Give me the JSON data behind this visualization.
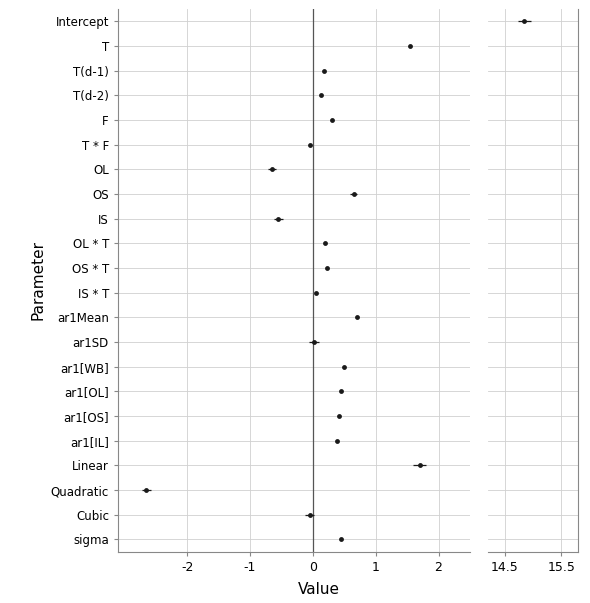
{
  "params": [
    "Intercept",
    "T",
    "T(d-1)",
    "T(d-2)",
    "F",
    "T * F",
    "OL",
    "OS",
    "IS",
    "OL * T",
    "OS * T",
    "IS * T",
    "ar1Mean",
    "ar1SD",
    "ar1[WB]",
    "ar1[OL]",
    "ar1[OS]",
    "ar1[IL]",
    "Linear",
    "Quadratic",
    "Cubic",
    "sigma"
  ],
  "values": [
    14.85,
    1.55,
    0.18,
    0.13,
    0.3,
    -0.05,
    -0.65,
    0.65,
    -0.55,
    0.2,
    0.22,
    0.05,
    0.7,
    0.02,
    0.5,
    0.45,
    0.42,
    0.38,
    1.7,
    -2.65,
    -0.05,
    0.45
  ],
  "lo": [
    14.73,
    1.55,
    0.18,
    0.13,
    0.3,
    -0.05,
    -0.72,
    0.59,
    -0.62,
    0.2,
    0.22,
    0.05,
    0.7,
    -0.06,
    0.5,
    0.45,
    0.42,
    0.38,
    1.6,
    -2.72,
    -0.12,
    0.45
  ],
  "hi": [
    14.97,
    1.55,
    0.18,
    0.13,
    0.3,
    -0.05,
    -0.58,
    0.71,
    -0.48,
    0.2,
    0.22,
    0.05,
    0.7,
    0.1,
    0.5,
    0.45,
    0.42,
    0.38,
    1.8,
    -2.58,
    0.02,
    0.45
  ],
  "main_xlim": [
    -3.1,
    2.5
  ],
  "main_xticks": [
    -2,
    -1,
    0,
    1,
    2
  ],
  "right_xlim": [
    14.2,
    15.8
  ],
  "right_xticks": [
    14.5,
    15.5
  ],
  "ylabel": "Parameter",
  "xlabel": "Value",
  "point_color": "#1a1a1a",
  "grid_color": "#d0d0d0",
  "bg_color": "#ffffff"
}
